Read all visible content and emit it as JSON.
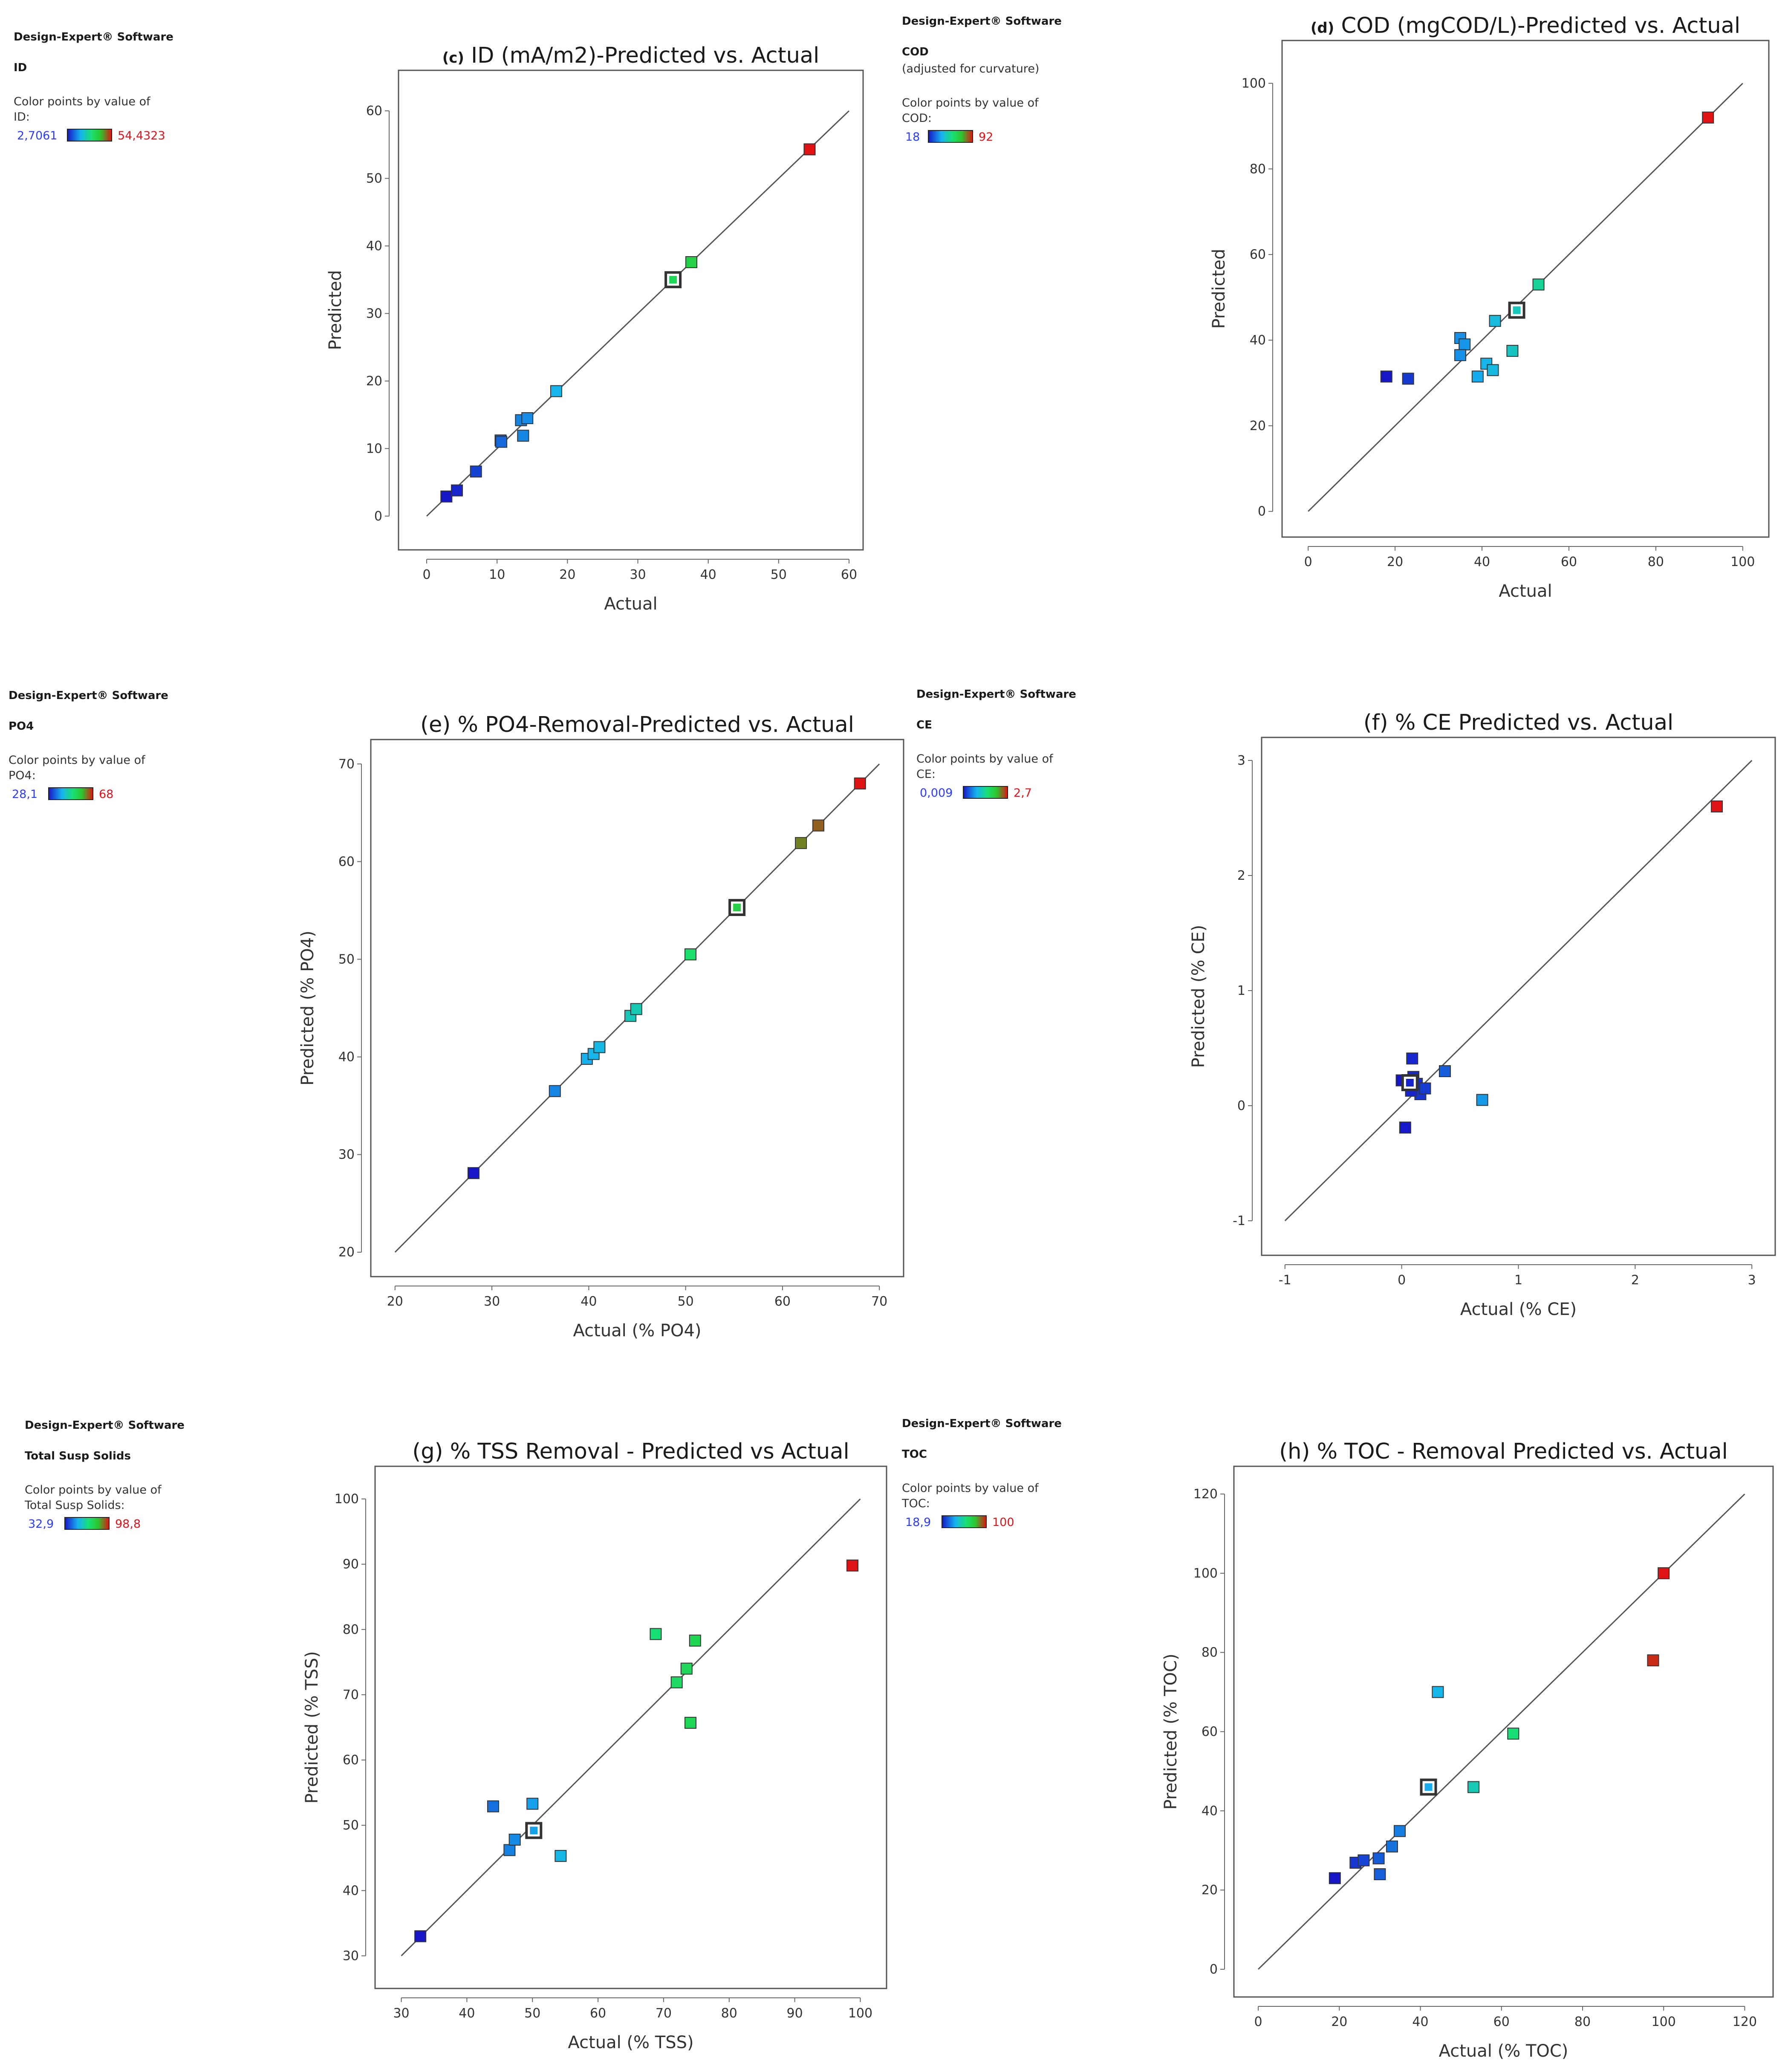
{
  "gradient_colors": [
    "#1616c8",
    "#16b4f0",
    "#18e070",
    "#2ec62e",
    "#e01414"
  ],
  "chart_data": [
    {
      "type": "scatter",
      "title_prefix": "(c)",
      "title": "ID (mA/m2)-Predicted vs. Actual",
      "xlabel": "Actual",
      "ylabel": "Predicted",
      "xlim": [
        -4,
        62
      ],
      "ylim": [
        -5,
        66
      ],
      "xticks": [
        0,
        10,
        20,
        30,
        40,
        50,
        60
      ],
      "yticks": [
        0,
        10,
        20,
        30,
        40,
        50,
        60
      ],
      "tick_labels_x": [
        "0",
        "10",
        "20",
        "30",
        "40",
        "50",
        "60"
      ],
      "tick_labels_y": [
        "0",
        "10",
        "20",
        "30",
        "40",
        "50",
        "60"
      ],
      "line": [
        [
          0,
          0
        ],
        [
          60,
          60
        ]
      ],
      "color_range": [
        2.7061,
        54.4323
      ],
      "hollow": [
        [
          35,
          35
        ]
      ],
      "points": [
        [
          2.8,
          2.9
        ],
        [
          4.3,
          3.8
        ],
        [
          7.0,
          6.6
        ],
        [
          10.5,
          11.2
        ],
        [
          10.6,
          11.0
        ],
        [
          13.4,
          14.2
        ],
        [
          14.3,
          14.5
        ],
        [
          13.7,
          11.9
        ],
        [
          18.4,
          18.5
        ],
        [
          37.6,
          37.6
        ],
        [
          54.4,
          54.3
        ]
      ],
      "legend": {
        "software": "Design-Expert® Software",
        "response": "ID",
        "note": "",
        "color_text": "Color points by value of",
        "var": "ID:",
        "low": "2,7061",
        "high": "54,4323"
      }
    },
    {
      "type": "scatter",
      "title_prefix": "(d)",
      "title": "COD (mgCOD/L)-Predicted vs. Actual",
      "xlabel": "Actual",
      "ylabel": "Predicted",
      "xlim": [
        -6,
        106
      ],
      "ylim": [
        -6,
        110
      ],
      "xticks": [
        0,
        20,
        40,
        60,
        80,
        100
      ],
      "yticks": [
        0,
        20,
        40,
        60,
        80,
        100
      ],
      "tick_labels_x": [
        "0",
        "20",
        "40",
        "60",
        "80",
        "100"
      ],
      "tick_labels_y": [
        "0",
        "20",
        "40",
        "60",
        "80",
        "100"
      ],
      "line": [
        [
          0,
          0
        ],
        [
          100,
          100
        ]
      ],
      "color_range": [
        18,
        92
      ],
      "hollow": [
        [
          48,
          47
        ]
      ],
      "points": [
        [
          18,
          31.5
        ],
        [
          23,
          31
        ],
        [
          35,
          40.5
        ],
        [
          36,
          39
        ],
        [
          35,
          36.5
        ],
        [
          39,
          31.5
        ],
        [
          41,
          34.5
        ],
        [
          42.5,
          33
        ],
        [
          43,
          44.5
        ],
        [
          47,
          37.5
        ],
        [
          53,
          53
        ],
        [
          92,
          92
        ]
      ],
      "legend": {
        "software": "Design-Expert® Software",
        "response": "COD",
        "note": "(adjusted for curvature)",
        "color_text": "Color points by value of",
        "var": "COD:",
        "low": "18",
        "high": "92"
      }
    },
    {
      "type": "scatter",
      "title_prefix": "",
      "title": "(e) % PO4-Removal-Predicted vs. Actual",
      "xlabel": "Actual (% PO4)",
      "ylabel": "Predicted (% PO4)",
      "xlim": [
        17.5,
        72.5
      ],
      "ylim": [
        17.5,
        72.5
      ],
      "xticks": [
        20,
        30,
        40,
        50,
        60,
        70
      ],
      "yticks": [
        20,
        30,
        40,
        50,
        60,
        70
      ],
      "tick_labels_x": [
        "20",
        "30",
        "40",
        "50",
        "60",
        "70"
      ],
      "tick_labels_y": [
        "20",
        "30",
        "40",
        "50",
        "60",
        "70"
      ],
      "line": [
        [
          20,
          20
        ],
        [
          70,
          70
        ]
      ],
      "color_range": [
        28.1,
        68
      ],
      "hollow": [
        [
          55.3,
          55.3
        ]
      ],
      "points": [
        [
          28.1,
          28.1
        ],
        [
          36.5,
          36.5
        ],
        [
          39.8,
          39.8
        ],
        [
          40.5,
          40.3
        ],
        [
          41.1,
          41.0
        ],
        [
          44.3,
          44.2
        ],
        [
          44.9,
          44.9
        ],
        [
          50.5,
          50.5
        ],
        [
          61.9,
          61.9
        ],
        [
          63.7,
          63.7
        ],
        [
          68,
          68
        ]
      ],
      "legend": {
        "software": "Design-Expert® Software",
        "response": "PO4",
        "note": "",
        "color_text": "Color points by value of",
        "var": "PO4:",
        "low": "28,1",
        "high": "68"
      }
    },
    {
      "type": "scatter",
      "title_prefix": "",
      "title": "(f) % CE Predicted vs. Actual",
      "xlabel": "Actual (% CE)",
      "ylabel": "Predicted (% CE)",
      "xlim": [
        -1.2,
        3.2
      ],
      "ylim": [
        -1.3,
        3.2
      ],
      "xticks": [
        -1,
        0,
        1,
        2,
        3
      ],
      "yticks": [
        -1,
        0,
        1,
        2,
        3
      ],
      "tick_labels_x": [
        "-1",
        "0",
        "1",
        "2",
        "3"
      ],
      "tick_labels_y": [
        "-1",
        "0",
        "1",
        "2",
        "3"
      ],
      "line": [
        [
          -1,
          -1
        ],
        [
          3,
          3
        ]
      ],
      "color_range": [
        0.009,
        2.7
      ],
      "hollow": [
        [
          0.07,
          0.2
        ]
      ],
      "points": [
        [
          0.0,
          0.22
        ],
        [
          0.09,
          0.41
        ],
        [
          0.1,
          0.25
        ],
        [
          0.13,
          0.19
        ],
        [
          0.16,
          0.1
        ],
        [
          0.2,
          0.15
        ],
        [
          0.08,
          0.13
        ],
        [
          0.03,
          -0.19
        ],
        [
          0.37,
          0.3
        ],
        [
          0.69,
          0.05
        ],
        [
          2.7,
          2.6
        ]
      ],
      "legend": {
        "software": "Design-Expert® Software",
        "response": "CE",
        "note": "",
        "color_text": "Color points by value of",
        "var": "CE:",
        "low": "0,009",
        "high": "2,7"
      }
    },
    {
      "type": "scatter",
      "title_prefix": "",
      "title": "(g) % TSS Removal - Predicted vs Actual",
      "xlabel": "Actual (% TSS)",
      "ylabel": "Predicted (% TSS)",
      "xlim": [
        26,
        104
      ],
      "ylim": [
        25,
        105
      ],
      "xticks": [
        30,
        40,
        50,
        60,
        70,
        80,
        90,
        100
      ],
      "yticks": [
        30,
        40,
        50,
        60,
        70,
        80,
        90,
        100
      ],
      "tick_labels_x": [
        "30",
        "40",
        "50",
        "60",
        "70",
        "80",
        "90",
        "100"
      ],
      "tick_labels_y": [
        "30",
        "40",
        "50",
        "60",
        "70",
        "80",
        "90",
        "100"
      ],
      "line": [
        [
          30,
          30
        ],
        [
          100,
          100
        ]
      ],
      "color_range": [
        32.9,
        98.8
      ],
      "hollow": [
        [
          50.2,
          49.2
        ]
      ],
      "points": [
        [
          32.9,
          33
        ],
        [
          44,
          52.9
        ],
        [
          50,
          53.3
        ],
        [
          46.5,
          46.2
        ],
        [
          47.3,
          47.8
        ],
        [
          54.3,
          45.3
        ],
        [
          68.8,
          79.3
        ],
        [
          72,
          71.9
        ],
        [
          73.5,
          74
        ],
        [
          74.8,
          78.3
        ],
        [
          74.1,
          65.7
        ],
        [
          98.8,
          89.8
        ]
      ],
      "legend": {
        "software": "Design-Expert® Software",
        "response": "Total Susp Solids",
        "note": "",
        "color_text": "Color points by value of",
        "var": "Total Susp Solids:",
        "low": "32,9",
        "high": "98,8"
      }
    },
    {
      "type": "scatter",
      "title_prefix": "",
      "title": "(h) % TOC - Removal Predicted vs. Actual",
      "xlabel": "Actual (% TOC)",
      "ylabel": "Predicted (% TOC)",
      "xlim": [
        -6,
        127
      ],
      "ylim": [
        -7,
        127
      ],
      "xticks": [
        0,
        20,
        40,
        60,
        80,
        100,
        120
      ],
      "yticks": [
        0,
        20,
        40,
        60,
        80,
        100,
        120
      ],
      "tick_labels_x": [
        "0",
        "20",
        "40",
        "60",
        "80",
        "100",
        "120"
      ],
      "tick_labels_y": [
        "0",
        "20",
        "40",
        "60",
        "80",
        "100",
        "120"
      ],
      "line": [
        [
          0,
          0
        ],
        [
          120,
          120
        ]
      ],
      "color_range": [
        18.9,
        100
      ],
      "hollow": [
        [
          42,
          46
        ]
      ],
      "points": [
        [
          18.9,
          23
        ],
        [
          24,
          26.9
        ],
        [
          26,
          27.5
        ],
        [
          29.7,
          28
        ],
        [
          30,
          24
        ],
        [
          33,
          31
        ],
        [
          34.9,
          34.9
        ],
        [
          44.3,
          70
        ],
        [
          53.1,
          46
        ],
        [
          62.9,
          59.5
        ],
        [
          97.4,
          78
        ],
        [
          100,
          100
        ]
      ],
      "legend": {
        "software": "Design-Expert® Software",
        "response": "TOC",
        "note": "",
        "color_text": "Color points by value of",
        "var": "TOC:",
        "low": "18,9",
        "high": "100"
      }
    }
  ]
}
